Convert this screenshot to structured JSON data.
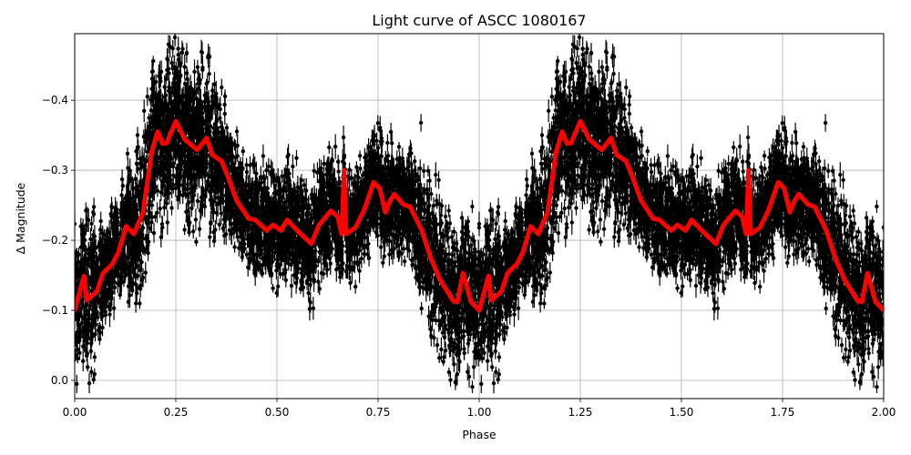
{
  "chart_data": {
    "type": "scatter",
    "title": "Light curve of ASCC 1080167",
    "xlabel": "Phase",
    "ylabel": "Δ Magnitude",
    "xlim": [
      0.0,
      2.0
    ],
    "ylim": [
      0.026,
      -0.495
    ],
    "y_inverted": true,
    "grid": true,
    "xticks": [
      0.0,
      0.25,
      0.5,
      0.75,
      1.0,
      1.25,
      1.5,
      1.75,
      2.0
    ],
    "xtick_labels": [
      "0.00",
      "0.25",
      "0.50",
      "0.75",
      "1.00",
      "1.25",
      "1.50",
      "1.75",
      "2.00"
    ],
    "yticks": [
      0.0,
      -0.1,
      -0.2,
      -0.3,
      -0.4
    ],
    "ytick_labels": [
      "0.0",
      "−0.1",
      "−0.2",
      "−0.3",
      "−0.4"
    ],
    "period_repeat": 2,
    "series": [
      {
        "name": "observations",
        "kind": "errorbar-scatter",
        "color": "#000000",
        "description": "dense black points with vertical error bars, ~±0.1 mag scatter around the model curve, phase-folded and repeated twice"
      },
      {
        "name": "binned model",
        "kind": "line",
        "color": "#ff0000",
        "linewidth": 5,
        "x": [
          0.0,
          0.023,
          0.03,
          0.055,
          0.07,
          0.093,
          0.108,
          0.127,
          0.146,
          0.169,
          0.19,
          0.205,
          0.217,
          0.227,
          0.25,
          0.272,
          0.303,
          0.326,
          0.34,
          0.363,
          0.378,
          0.4,
          0.43,
          0.446,
          0.475,
          0.49,
          0.51,
          0.525,
          0.55,
          0.585,
          0.604,
          0.633,
          0.65,
          0.66,
          0.666,
          0.671,
          0.694,
          0.716,
          0.739,
          0.754,
          0.768,
          0.78,
          0.79,
          0.813,
          0.829,
          0.858,
          0.88,
          0.903,
          0.935,
          0.946,
          0.96,
          0.98,
          1.0
        ],
        "y": [
          -0.1,
          -0.149,
          -0.114,
          -0.127,
          -0.153,
          -0.166,
          -0.183,
          -0.22,
          -0.209,
          -0.24,
          -0.326,
          -0.355,
          -0.338,
          -0.339,
          -0.37,
          -0.344,
          -0.329,
          -0.346,
          -0.322,
          -0.313,
          -0.292,
          -0.257,
          -0.231,
          -0.229,
          -0.214,
          -0.222,
          -0.214,
          -0.229,
          -0.214,
          -0.195,
          -0.222,
          -0.242,
          -0.234,
          -0.209,
          -0.3,
          -0.209,
          -0.218,
          -0.244,
          -0.283,
          -0.274,
          -0.24,
          -0.257,
          -0.266,
          -0.251,
          -0.248,
          -0.214,
          -0.175,
          -0.144,
          -0.114,
          -0.112,
          -0.153,
          -0.112,
          -0.1
        ]
      }
    ]
  }
}
